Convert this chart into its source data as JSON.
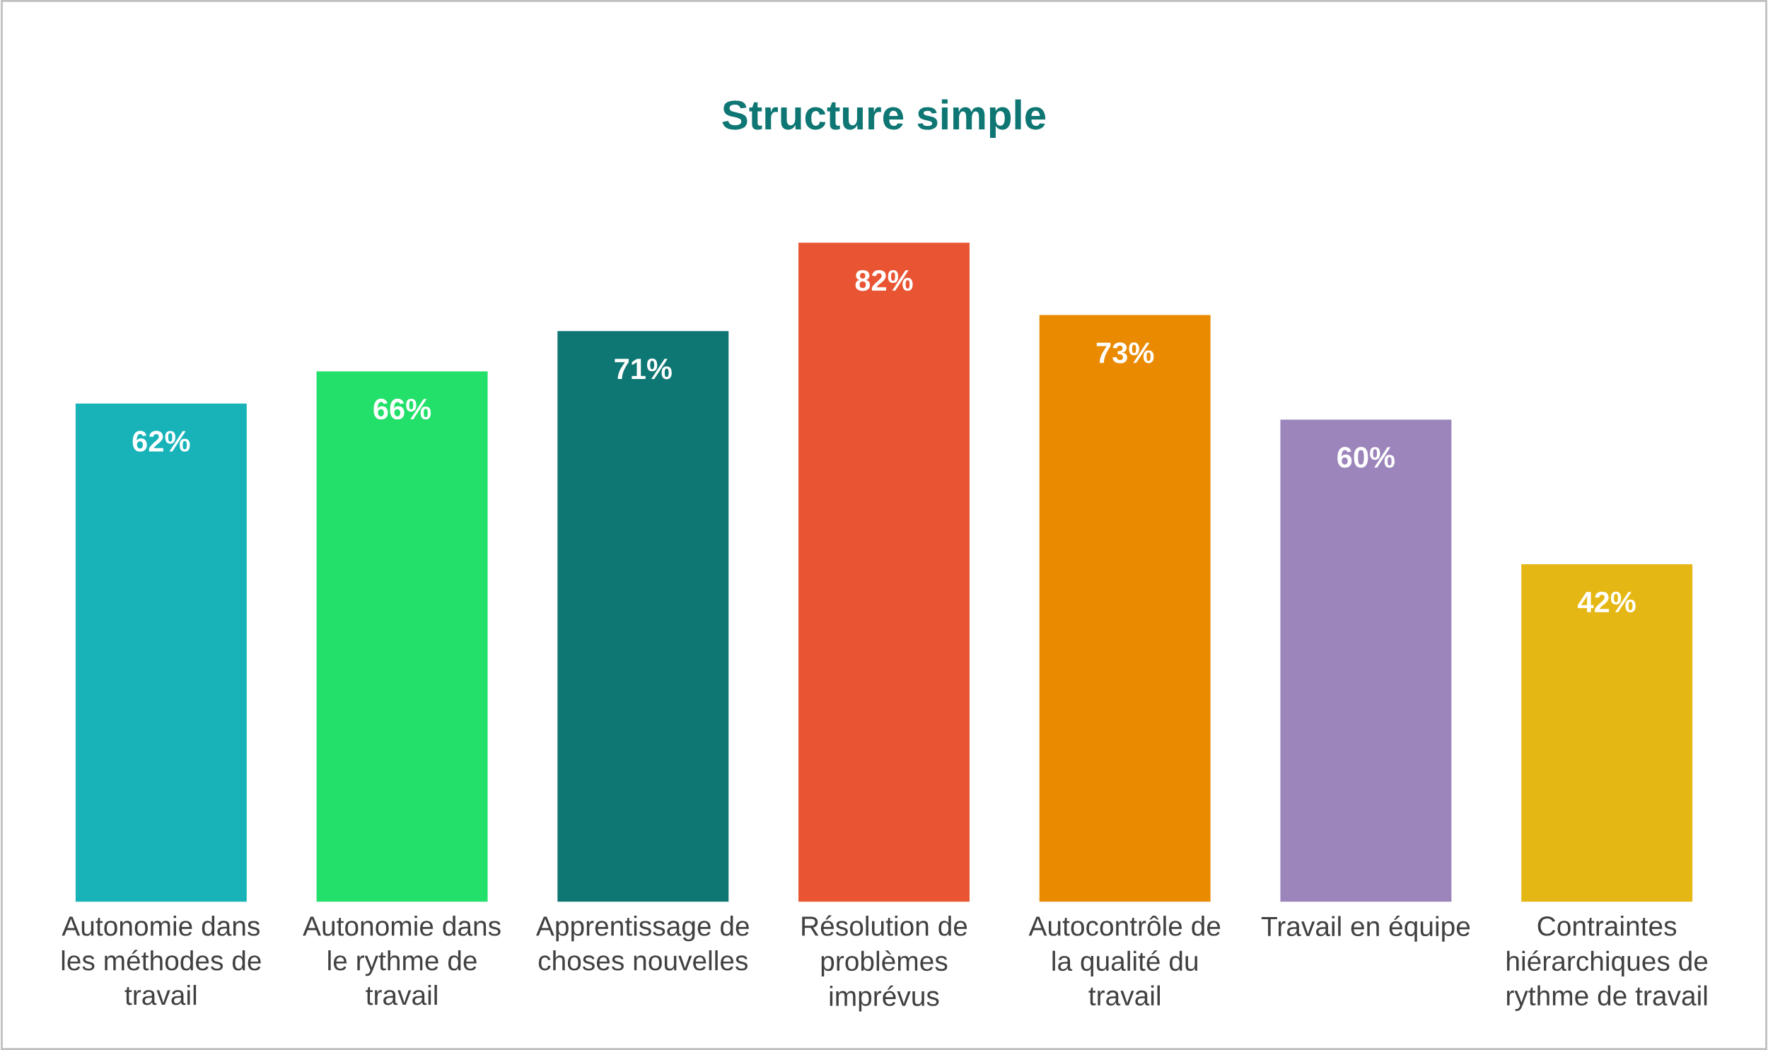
{
  "chart_data": {
    "type": "bar",
    "title": "Structure simple",
    "categories": [
      "Autonomie dans\nles méthodes de\ntravail",
      "Autonomie dans\nle rythme de\ntravail",
      "Apprentissage de\nchoses nouvelles",
      "Résolution de\nproblèmes\nimprévus",
      "Autocontrôle de\nla qualité du\ntravail",
      "Travail en équipe",
      "Contraintes\nhiérarchiques de\nrythme de travail"
    ],
    "values": [
      62,
      66,
      71,
      82,
      73,
      60,
      42
    ],
    "colors": [
      "#17b3b8",
      "#22e06a",
      "#0e7673",
      "#e95532",
      "#ea8a00",
      "#9b85bb",
      "#e5b714"
    ],
    "value_labels": [
      "62%",
      "66%",
      "71%",
      "82%",
      "73%",
      "60%",
      "42%"
    ],
    "grid": false,
    "legend": false
  }
}
